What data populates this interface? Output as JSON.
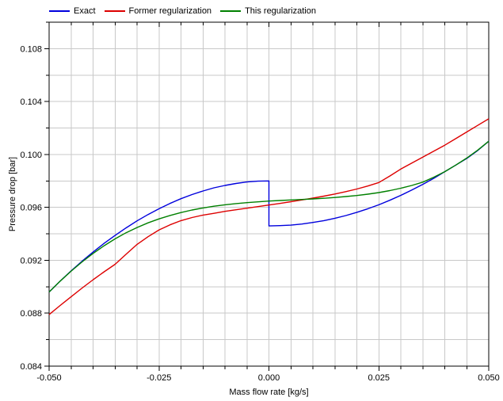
{
  "chart_data": {
    "type": "line",
    "title": "",
    "xlabel": "Mass flow rate [kg/s]",
    "ylabel": "Pressure drop [bar]",
    "xlim": [
      -0.05,
      0.05
    ],
    "ylim": [
      0.084,
      0.11
    ],
    "grid": true,
    "grid_color": "#c8c8c8",
    "frame_color": "#000000",
    "legend_position": "top-left",
    "x_major_ticks": [
      -0.05,
      -0.025,
      0.0,
      0.025,
      0.05
    ],
    "x_major_labels": [
      "-0.050",
      "-0.025",
      "0.000",
      "0.025",
      "0.050"
    ],
    "x_minor_step": 0.005,
    "y_major_ticks": [
      0.084,
      0.088,
      0.092,
      0.096,
      0.1,
      0.104,
      0.108
    ],
    "y_major_labels": [
      "0.084",
      "0.088",
      "0.092",
      "0.096",
      "0.100",
      "0.104",
      "0.108"
    ],
    "y_minor_step": 0.002,
    "series": [
      {
        "name": "Exact",
        "color": "#0000dd",
        "discontinuity_at_x": 0.0,
        "x": [
          -0.05,
          -0.0475,
          -0.045,
          -0.0425,
          -0.04,
          -0.0375,
          -0.035,
          -0.0325,
          -0.03,
          -0.0275,
          -0.025,
          -0.0225,
          -0.02,
          -0.0175,
          -0.015,
          -0.0125,
          -0.01,
          -0.0075,
          -0.005,
          -0.0025,
          0.0,
          0.0,
          0.0025,
          0.005,
          0.0075,
          0.01,
          0.0125,
          0.015,
          0.0175,
          0.02,
          0.0225,
          0.025,
          0.0275,
          0.03,
          0.0325,
          0.035,
          0.0375,
          0.04,
          0.0425,
          0.045,
          0.0475,
          0.05
        ],
        "y": [
          0.0896,
          0.09042,
          0.0912,
          0.09193,
          0.09262,
          0.09328,
          0.09388,
          0.09445,
          0.09498,
          0.09546,
          0.0959,
          0.0963,
          0.09666,
          0.09697,
          0.09724,
          0.09748,
          0.09766,
          0.09781,
          0.09792,
          0.09798,
          0.098,
          0.0946,
          0.09462,
          0.09466,
          0.09474,
          0.09486,
          0.095,
          0.09518,
          0.09538,
          0.09563,
          0.0959,
          0.0962,
          0.09654,
          0.09691,
          0.09731,
          0.09774,
          0.0982,
          0.0987,
          0.0992,
          0.0997,
          0.1003,
          0.101
        ]
      },
      {
        "name": "Former regularization",
        "color": "#dd0000",
        "x": [
          -0.05,
          -0.0475,
          -0.045,
          -0.0425,
          -0.04,
          -0.0375,
          -0.035,
          -0.0325,
          -0.03,
          -0.0275,
          -0.025,
          -0.0225,
          -0.02,
          -0.0175,
          -0.015,
          -0.0125,
          -0.01,
          -0.0075,
          -0.005,
          -0.0025,
          0.0,
          0.0025,
          0.005,
          0.0075,
          0.01,
          0.0125,
          0.015,
          0.0175,
          0.02,
          0.0225,
          0.025,
          0.0275,
          0.03,
          0.0325,
          0.035,
          0.0375,
          0.04,
          0.0425,
          0.045,
          0.0475,
          0.05
        ],
        "y": [
          0.0879,
          0.08858,
          0.08925,
          0.0899,
          0.09053,
          0.09113,
          0.0917,
          0.09245,
          0.0932,
          0.09378,
          0.0943,
          0.09468,
          0.095,
          0.09523,
          0.09542,
          0.09555,
          0.0957,
          0.09582,
          0.09594,
          0.09606,
          0.09618,
          0.0963,
          0.09643,
          0.09656,
          0.0967,
          0.09685,
          0.09701,
          0.09719,
          0.09739,
          0.09762,
          0.09788,
          0.09837,
          0.0989,
          0.09935,
          0.0998,
          0.10025,
          0.1007,
          0.1012,
          0.1017,
          0.1022,
          0.1027
        ]
      },
      {
        "name": "This regularization",
        "color": "#008000",
        "x": [
          -0.05,
          -0.0475,
          -0.045,
          -0.0425,
          -0.04,
          -0.0375,
          -0.035,
          -0.0325,
          -0.03,
          -0.0275,
          -0.025,
          -0.0225,
          -0.02,
          -0.0175,
          -0.015,
          -0.0125,
          -0.01,
          -0.0075,
          -0.005,
          -0.0025,
          0.0,
          0.0025,
          0.005,
          0.0075,
          0.01,
          0.0125,
          0.015,
          0.0175,
          0.02,
          0.0225,
          0.025,
          0.0275,
          0.03,
          0.0325,
          0.035,
          0.0375,
          0.04,
          0.0425,
          0.045,
          0.0475,
          0.05
        ],
        "y": [
          0.0896,
          0.09042,
          0.09118,
          0.09188,
          0.09252,
          0.0931,
          0.09362,
          0.09408,
          0.09448,
          0.09483,
          0.09513,
          0.09539,
          0.09561,
          0.0958,
          0.09596,
          0.09609,
          0.0962,
          0.09629,
          0.09636,
          0.09642,
          0.09648,
          0.09652,
          0.09656,
          0.0966,
          0.09664,
          0.09669,
          0.09675,
          0.09682,
          0.0969,
          0.097,
          0.09712,
          0.09727,
          0.09745,
          0.09766,
          0.09791,
          0.09828,
          0.0987,
          0.0992,
          0.09973,
          0.10033,
          0.101
        ]
      }
    ]
  }
}
